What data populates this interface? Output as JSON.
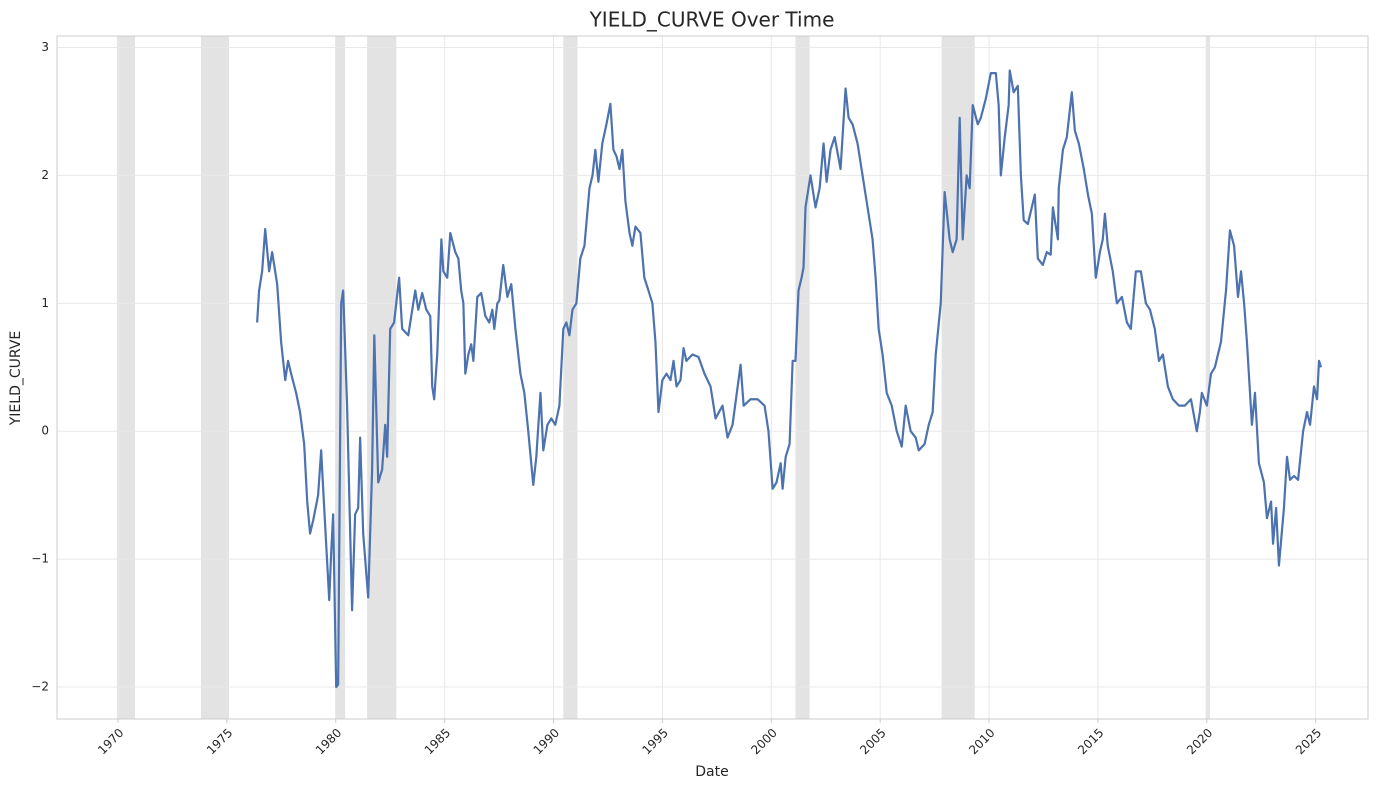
{
  "chart_data": {
    "type": "line",
    "title": "YIELD_CURVE Over Time",
    "x_label": "Date",
    "y_label": "YIELD_CURVE",
    "xlim": [
      1967.2,
      2027.4
    ],
    "ylim": [
      -2.25,
      3.09
    ],
    "xticks": [
      1970,
      1975,
      1980,
      1985,
      1990,
      1995,
      2000,
      2005,
      2010,
      2015,
      2020,
      2025
    ],
    "yticks": [
      {
        "value": -2,
        "label": "−2"
      },
      {
        "value": -1,
        "label": "−1"
      },
      0,
      1,
      2,
      3
    ],
    "grid": true,
    "recessions": [
      [
        1969.95,
        1970.78
      ],
      [
        1973.81,
        1975.1
      ],
      [
        1979.97,
        1980.43
      ],
      [
        1981.44,
        1982.78
      ],
      [
        1990.45,
        1991.1
      ],
      [
        2001.11,
        2001.76
      ],
      [
        2007.82,
        2009.34
      ],
      [
        2019.95,
        2020.14
      ]
    ],
    "recession_color": "#e3e3e3",
    "series": [
      {
        "name": "YIELD_CURVE",
        "color": "#4c72b0",
        "x": [
          1976.39,
          1976.48,
          1976.62,
          1976.76,
          1976.94,
          1977.08,
          1977.31,
          1977.49,
          1977.68,
          1977.81,
          1977.95,
          1978.18,
          1978.36,
          1978.55,
          1978.69,
          1978.82,
          1978.96,
          1979.19,
          1979.33,
          1979.47,
          1979.7,
          1979.79,
          1979.88,
          1980.02,
          1980.11,
          1980.25,
          1980.34,
          1980.52,
          1980.75,
          1980.89,
          1981.03,
          1981.12,
          1981.26,
          1981.49,
          1981.67,
          1981.77,
          1981.95,
          1982.13,
          1982.27,
          1982.36,
          1982.5,
          1982.68,
          1982.91,
          1983.05,
          1983.33,
          1983.65,
          1983.79,
          1983.97,
          1984.16,
          1984.34,
          1984.43,
          1984.52,
          1984.66,
          1984.85,
          1984.94,
          1985.12,
          1985.26,
          1985.49,
          1985.63,
          1985.76,
          1985.86,
          1985.95,
          1986.09,
          1986.22,
          1986.32,
          1986.5,
          1986.68,
          1986.87,
          1987.05,
          1987.19,
          1987.28,
          1987.42,
          1987.51,
          1987.69,
          1987.88,
          1988.06,
          1988.25,
          1988.48,
          1988.66,
          1988.84,
          1989.07,
          1989.21,
          1989.4,
          1989.53,
          1989.72,
          1989.9,
          1990.08,
          1990.27,
          1990.45,
          1990.59,
          1990.73,
          1990.87,
          1991.05,
          1991.23,
          1991.42,
          1991.65,
          1991.79,
          1991.92,
          1992.06,
          1992.24,
          1992.43,
          1992.61,
          1992.75,
          1992.89,
          1993.03,
          1993.16,
          1993.3,
          1993.49,
          1993.62,
          1993.76,
          1993.99,
          1994.17,
          1994.36,
          1994.54,
          1994.68,
          1994.82,
          1995.0,
          1995.19,
          1995.37,
          1995.51,
          1995.65,
          1995.83,
          1995.97,
          1996.1,
          1996.38,
          1996.66,
          1996.93,
          1997.21,
          1997.44,
          1997.76,
          1997.99,
          1998.22,
          1998.59,
          1998.73,
          1999.05,
          1999.37,
          1999.69,
          1999.87,
          2000.06,
          2000.24,
          2000.43,
          2000.52,
          2000.66,
          2000.84,
          2000.98,
          2001.11,
          2001.25,
          2001.39,
          2001.48,
          2001.57,
          2001.8,
          2002.03,
          2002.22,
          2002.4,
          2002.54,
          2002.72,
          2002.91,
          2003.18,
          2003.41,
          2003.55,
          2003.73,
          2003.96,
          2004.19,
          2004.42,
          2004.65,
          2004.79,
          2004.93,
          2005.11,
          2005.3,
          2005.53,
          2005.76,
          2005.99,
          2006.17,
          2006.4,
          2006.63,
          2006.77,
          2007.04,
          2007.23,
          2007.41,
          2007.55,
          2007.78,
          2007.96,
          2008.19,
          2008.33,
          2008.51,
          2008.65,
          2008.79,
          2008.97,
          2009.11,
          2009.25,
          2009.48,
          2009.62,
          2009.85,
          2010.08,
          2010.31,
          2010.44,
          2010.54,
          2010.72,
          2010.9,
          2010.95,
          2011.13,
          2011.32,
          2011.46,
          2011.59,
          2011.78,
          2012.1,
          2012.24,
          2012.47,
          2012.65,
          2012.83,
          2012.93,
          2013.16,
          2013.2,
          2013.39,
          2013.57,
          2013.8,
          2013.94,
          2014.12,
          2014.35,
          2014.54,
          2014.72,
          2014.9,
          2015.09,
          2015.22,
          2015.32,
          2015.45,
          2015.68,
          2015.87,
          2016.1,
          2016.33,
          2016.51,
          2016.74,
          2016.97,
          2017.2,
          2017.39,
          2017.61,
          2017.8,
          2017.98,
          2018.21,
          2018.44,
          2018.72,
          2018.99,
          2019.27,
          2019.54,
          2019.68,
          2019.77,
          2020.0,
          2020.19,
          2020.37,
          2020.65,
          2020.88,
          2021.06,
          2021.25,
          2021.43,
          2021.57,
          2021.71,
          2021.84,
          2022.07,
          2022.21,
          2022.39,
          2022.62,
          2022.76,
          2022.95,
          2023.04,
          2023.18,
          2023.31,
          2023.54,
          2023.68,
          2023.82,
          2024.0,
          2024.19,
          2024.42,
          2024.6,
          2024.74,
          2024.92,
          2025.06,
          2025.15,
          2025.24
        ],
        "values": [
          0.85,
          1.1,
          1.25,
          1.58,
          1.25,
          1.4,
          1.15,
          0.7,
          0.4,
          0.55,
          0.45,
          0.3,
          0.15,
          -0.1,
          -0.55,
          -0.8,
          -0.7,
          -0.5,
          -0.15,
          -0.6,
          -1.32,
          -0.95,
          -0.65,
          -2.0,
          -1.98,
          1.0,
          1.1,
          0.2,
          -1.4,
          -0.65,
          -0.6,
          -0.05,
          -0.8,
          -1.3,
          -0.3,
          0.75,
          -0.4,
          -0.3,
          0.05,
          -0.2,
          0.8,
          0.85,
          1.2,
          0.8,
          0.75,
          1.1,
          0.95,
          1.08,
          0.95,
          0.9,
          0.35,
          0.25,
          0.6,
          1.5,
          1.25,
          1.2,
          1.55,
          1.4,
          1.35,
          1.1,
          1.0,
          0.45,
          0.6,
          0.68,
          0.55,
          1.05,
          1.08,
          0.9,
          0.85,
          0.95,
          0.8,
          1.0,
          1.02,
          1.3,
          1.05,
          1.15,
          0.8,
          0.45,
          0.3,
          0.0,
          -0.42,
          -0.2,
          0.3,
          -0.15,
          0.05,
          0.1,
          0.05,
          0.2,
          0.8,
          0.85,
          0.75,
          0.95,
          1.0,
          1.35,
          1.45,
          1.9,
          2.0,
          2.2,
          1.95,
          2.25,
          2.4,
          2.56,
          2.2,
          2.15,
          2.05,
          2.2,
          1.8,
          1.55,
          1.45,
          1.6,
          1.55,
          1.2,
          1.1,
          1.0,
          0.7,
          0.15,
          0.4,
          0.45,
          0.4,
          0.55,
          0.35,
          0.4,
          0.65,
          0.55,
          0.6,
          0.58,
          0.45,
          0.35,
          0.1,
          0.2,
          -0.05,
          0.05,
          0.52,
          0.2,
          0.25,
          0.25,
          0.2,
          0.0,
          -0.45,
          -0.4,
          -0.25,
          -0.45,
          -0.2,
          -0.1,
          0.55,
          0.55,
          1.1,
          1.2,
          1.28,
          1.75,
          2.0,
          1.75,
          1.9,
          2.25,
          1.95,
          2.2,
          2.3,
          2.05,
          2.68,
          2.45,
          2.4,
          2.25,
          2.0,
          1.75,
          1.5,
          1.2,
          0.8,
          0.6,
          0.3,
          0.2,
          0.0,
          -0.12,
          0.2,
          0.0,
          -0.05,
          -0.15,
          -0.1,
          0.05,
          0.15,
          0.6,
          1.0,
          1.87,
          1.5,
          1.4,
          1.5,
          2.45,
          1.5,
          2.0,
          1.9,
          2.55,
          2.4,
          2.45,
          2.6,
          2.8,
          2.8,
          2.55,
          2.0,
          2.3,
          2.55,
          2.82,
          2.65,
          2.7,
          2.0,
          1.65,
          1.62,
          1.85,
          1.35,
          1.3,
          1.4,
          1.38,
          1.75,
          1.5,
          1.9,
          2.2,
          2.3,
          2.65,
          2.35,
          2.25,
          2.05,
          1.85,
          1.7,
          1.2,
          1.4,
          1.5,
          1.7,
          1.45,
          1.25,
          1.0,
          1.05,
          0.85,
          0.8,
          1.25,
          1.25,
          1.0,
          0.95,
          0.8,
          0.55,
          0.6,
          0.35,
          0.25,
          0.2,
          0.2,
          0.25,
          0.0,
          0.15,
          0.3,
          0.2,
          0.45,
          0.5,
          0.7,
          1.1,
          1.57,
          1.45,
          1.05,
          1.25,
          1.0,
          0.7,
          0.05,
          0.3,
          -0.25,
          -0.4,
          -0.68,
          -0.55,
          -0.88,
          -0.6,
          -1.05,
          -0.6,
          -0.2,
          -0.38,
          -0.35,
          -0.38,
          0.0,
          0.15,
          0.05,
          0.35,
          0.25,
          0.55,
          0.5
        ]
      }
    ]
  }
}
